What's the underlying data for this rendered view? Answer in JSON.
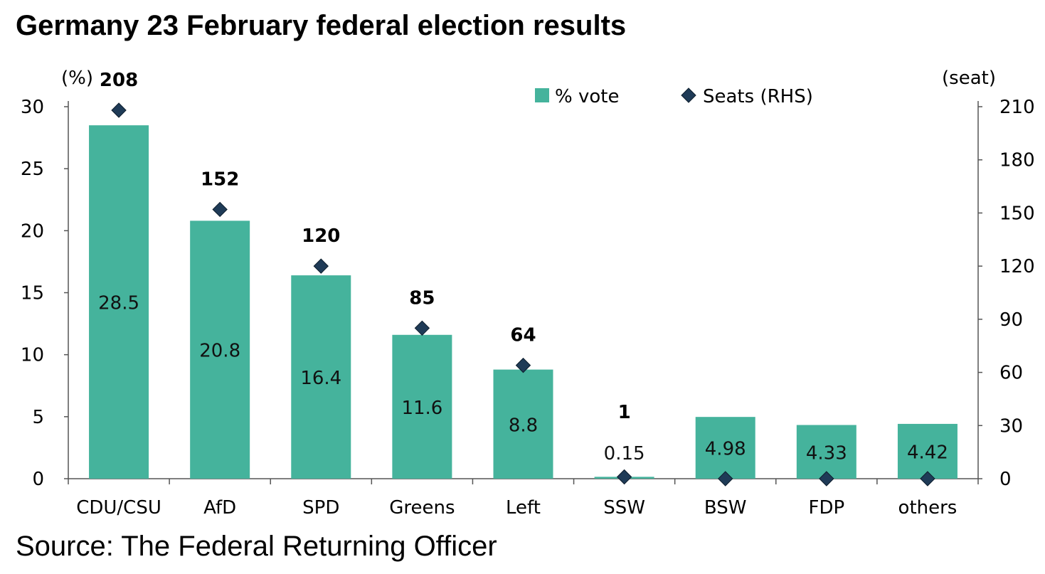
{
  "title": "Germany 23 February federal election results",
  "source": "Source: The Federal Returning Officer",
  "colors": {
    "bar": "#45B39C",
    "marker": "#1F3B57",
    "axis": "#555555"
  },
  "chart_data": {
    "type": "bar",
    "categories": [
      "CDU/CSU",
      "AfD",
      "SPD",
      "Greens",
      "Left",
      "SSW",
      "BSW",
      "FDP",
      "others"
    ],
    "series": [
      {
        "name": "% vote",
        "type": "bar",
        "axis": "left",
        "values": [
          28.5,
          20.8,
          16.4,
          11.6,
          8.8,
          0.15,
          4.98,
          4.33,
          4.42
        ],
        "labels": [
          "28.5",
          "20.8",
          "16.4",
          "11.6",
          "8.8",
          "0.15",
          "4.98",
          "4.33",
          "4.42"
        ]
      },
      {
        "name": "Seats (RHS)",
        "type": "scatter",
        "marker": "diamond",
        "axis": "right",
        "values": [
          208,
          152,
          120,
          85,
          64,
          1,
          0,
          0,
          0
        ],
        "labels": [
          "208",
          "152",
          "120",
          "85",
          "64",
          "1",
          "",
          "",
          ""
        ]
      }
    ],
    "ylabel": "(%)",
    "ylim": [
      0,
      30
    ],
    "yticks": [
      "0",
      "5",
      "10",
      "15",
      "20",
      "25",
      "30"
    ],
    "y2label": "(seat)",
    "y2lim": [
      0,
      210
    ],
    "y2ticks": [
      "0",
      "30",
      "60",
      "90",
      "120",
      "150",
      "180",
      "210"
    ],
    "legend_position": "top-center",
    "grid": false
  }
}
